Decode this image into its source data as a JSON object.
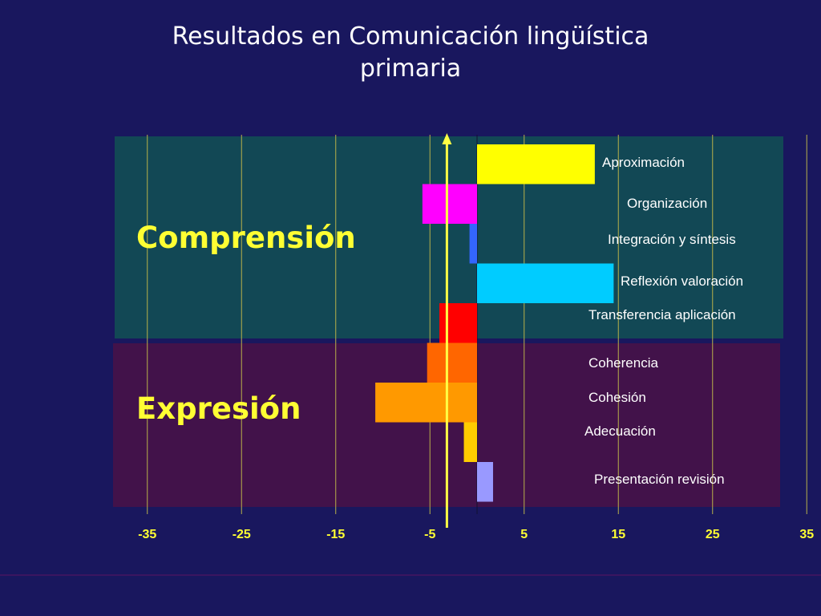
{
  "title_line1": "Resultados en Comunicación lingüística",
  "title_line2": "primaria",
  "colors": {
    "background": "#19175e",
    "comprension_panel": "#124855",
    "expresion_panel": "#42124a",
    "group_label": "#ffff33",
    "reference_line": "#ffff44",
    "gridline": "#b8b04a",
    "category_label": "#ffffff",
    "tick_label": "#ffff33"
  },
  "chart_data": {
    "type": "bar",
    "orientation": "horizontal",
    "xlim": [
      -38.5,
      35
    ],
    "xticks": [
      -35,
      -25,
      -15,
      -5,
      5,
      15,
      25,
      35
    ],
    "xlabel": "",
    "ylabel": "",
    "grid": "vertical",
    "reference_line": {
      "x": -3.2
    },
    "groups": [
      {
        "name": "Comprensión",
        "panel": "comprension"
      },
      {
        "name": "Expresión",
        "panel": "expresion"
      }
    ],
    "bars": [
      {
        "label": "Aproximación",
        "value": 12.5,
        "color": "#ffff00",
        "group": "Comprensión"
      },
      {
        "label": "Organización",
        "value": -5.8,
        "color": "#ff00ff",
        "group": "Comprensión"
      },
      {
        "label": "Integración y síntesis",
        "value": -0.8,
        "color": "#3366ff",
        "group": "Comprensión"
      },
      {
        "label": "Reflexión valoración",
        "value": 14.5,
        "color": "#00ccff",
        "group": "Comprensión"
      },
      {
        "label": "Transferencia aplicación",
        "value": -4.0,
        "color": "#ff0000",
        "group": "Comprensión"
      },
      {
        "label": "Coherencia",
        "value": -5.3,
        "color": "#ff6600",
        "group": "Expresión"
      },
      {
        "label": "Cohesión",
        "value": -10.8,
        "color": "#ff9900",
        "group": "Expresión"
      },
      {
        "label": "Adecuación",
        "value": -1.4,
        "color": "#ffcc00",
        "group": "Expresión"
      },
      {
        "label": "Presentación revisión",
        "value": 1.7,
        "color": "#9999ff",
        "group": "Expresión"
      }
    ]
  }
}
